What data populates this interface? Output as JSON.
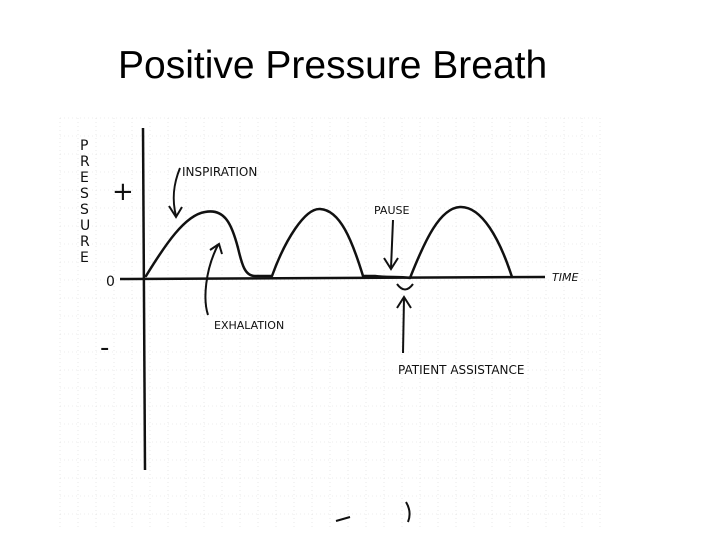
{
  "slide": {
    "title": "Positive Pressure Breath"
  },
  "diagram": {
    "y_axis_label": "PRESSURE",
    "y_axis_letters": [
      "P",
      "R",
      "E",
      "S",
      "S",
      "U",
      "R",
      "E"
    ],
    "plus_sign": "+",
    "zero_label": "0",
    "minus_sign": "-",
    "x_axis_label": "TIME",
    "annotations": {
      "inspiration": "INSPIRATION",
      "exhalation": "EXHALATION",
      "pause": "PAUSE",
      "patient_assistance": "PATIENT ASSISTANCE"
    },
    "breath_count": 3,
    "colors": {
      "ink": "#111111",
      "grid": "#d9d9d9"
    }
  }
}
